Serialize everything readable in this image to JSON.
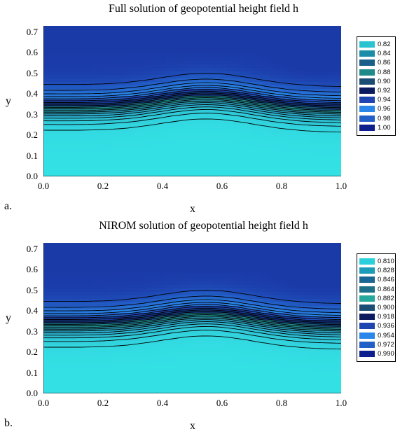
{
  "figure": {
    "panels": [
      {
        "id": "a",
        "panel_label": "a.",
        "title": "Full solution of geopotential height field h"
      },
      {
        "id": "b",
        "panel_label": "b.",
        "title": "NIROM solution of geopotential height field h"
      }
    ]
  },
  "chart_data": [
    {
      "type": "heatmap",
      "title": "Full solution of geopotential height field h",
      "xlabel": "x",
      "ylabel": "y",
      "xlim": [
        0.0,
        1.0
      ],
      "ylim": [
        0.0,
        0.73
      ],
      "x_ticks": [
        "0.0",
        "0.2",
        "0.4",
        "0.6",
        "0.8",
        "1.0"
      ],
      "y_ticks": [
        "0.0",
        "0.1",
        "0.2",
        "0.3",
        "0.4",
        "0.5",
        "0.6",
        "0.7"
      ],
      "legend": {
        "position": "right",
        "entries": [
          {
            "label": "0.82",
            "color": "#2bc3d0"
          },
          {
            "label": "0.84",
            "color": "#1c8da8"
          },
          {
            "label": "0.86",
            "color": "#1a5f88"
          },
          {
            "label": "0.88",
            "color": "#208a8a"
          },
          {
            "label": "0.90",
            "color": "#1b4d74"
          },
          {
            "label": "0.92",
            "color": "#0c1a60"
          },
          {
            "label": "0.94",
            "color": "#1f46b0"
          },
          {
            "label": "0.96",
            "color": "#2a86e8"
          },
          {
            "label": "0.98",
            "color": "#2260c8"
          },
          {
            "label": "1.00",
            "color": "#0d1f8c"
          }
        ]
      },
      "field": {
        "low_region": "bottom (y < 0.2), minimum near x = 0.45, y = 0.02",
        "high_region": "top (y > 0.55), maximum near x = 0.6, y = 0.68",
        "steep_gradient_band": "y ≈ 0.25 to 0.45, bulging upward around x = 0.5 to 0.6"
      }
    },
    {
      "type": "heatmap",
      "title": "NIROM solution of geopotential height field h",
      "xlabel": "x",
      "ylabel": "y",
      "xlim": [
        0.0,
        1.0
      ],
      "ylim": [
        0.0,
        0.73
      ],
      "x_ticks": [
        "0.0",
        "0.2",
        "0.4",
        "0.6",
        "0.8",
        "1.0"
      ],
      "y_ticks": [
        "0.0",
        "0.1",
        "0.2",
        "0.3",
        "0.4",
        "0.5",
        "0.6",
        "0.7"
      ],
      "legend": {
        "position": "right",
        "entries": [
          {
            "label": "0.810",
            "color": "#2bd0dc"
          },
          {
            "label": "0.828",
            "color": "#1c9cb8"
          },
          {
            "label": "0.846",
            "color": "#1a6694"
          },
          {
            "label": "0.864",
            "color": "#1e7088"
          },
          {
            "label": "0.882",
            "color": "#26a89c"
          },
          {
            "label": "0.900",
            "color": "#1a4c74"
          },
          {
            "label": "0.918",
            "color": "#0c1a5e"
          },
          {
            "label": "0.936",
            "color": "#1f46b0"
          },
          {
            "label": "0.954",
            "color": "#2a86e8"
          },
          {
            "label": "0.972",
            "color": "#2260c8"
          },
          {
            "label": "0.990",
            "color": "#0d1f8c"
          }
        ]
      },
      "field": {
        "low_region": "bottom (y < 0.2), minimum near x = 0.45, y = 0.02",
        "high_region": "top (y > 0.55), maximum near x = 0.6, y = 0.68",
        "steep_gradient_band": "y ≈ 0.25 to 0.45, bulging upward around x = 0.5 to 0.6"
      }
    }
  ]
}
